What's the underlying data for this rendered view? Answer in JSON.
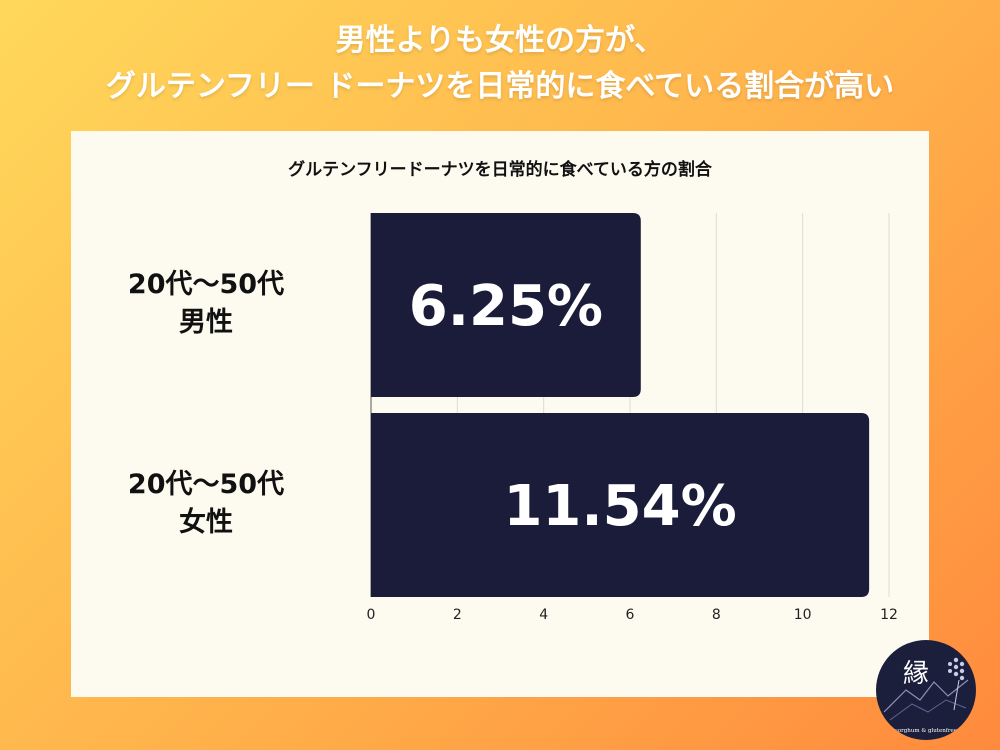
{
  "headline": {
    "line1": "男性よりも女性の方が、",
    "line2": "グルテンフリー ドーナツを日常的に食べている割合が高い"
  },
  "chart_data": {
    "type": "bar",
    "orientation": "horizontal",
    "title": "グルテンフリードーナツを日常的に食べている方の割合",
    "categories": [
      {
        "line1": "20代〜50代",
        "line2": "男性"
      },
      {
        "line1": "20代〜50代",
        "line2": "女性"
      }
    ],
    "values": [
      6.25,
      11.54
    ],
    "data_labels": [
      "6.25%",
      "11.54%"
    ],
    "xlim": [
      0,
      12
    ],
    "xticks": [
      "0",
      "2",
      "4",
      "6",
      "8",
      "10",
      "12"
    ],
    "grid": true,
    "bar_color": "#1b1c3a"
  },
  "logo": {
    "mark": "縁",
    "caption": "sorghum & glutenfree"
  }
}
